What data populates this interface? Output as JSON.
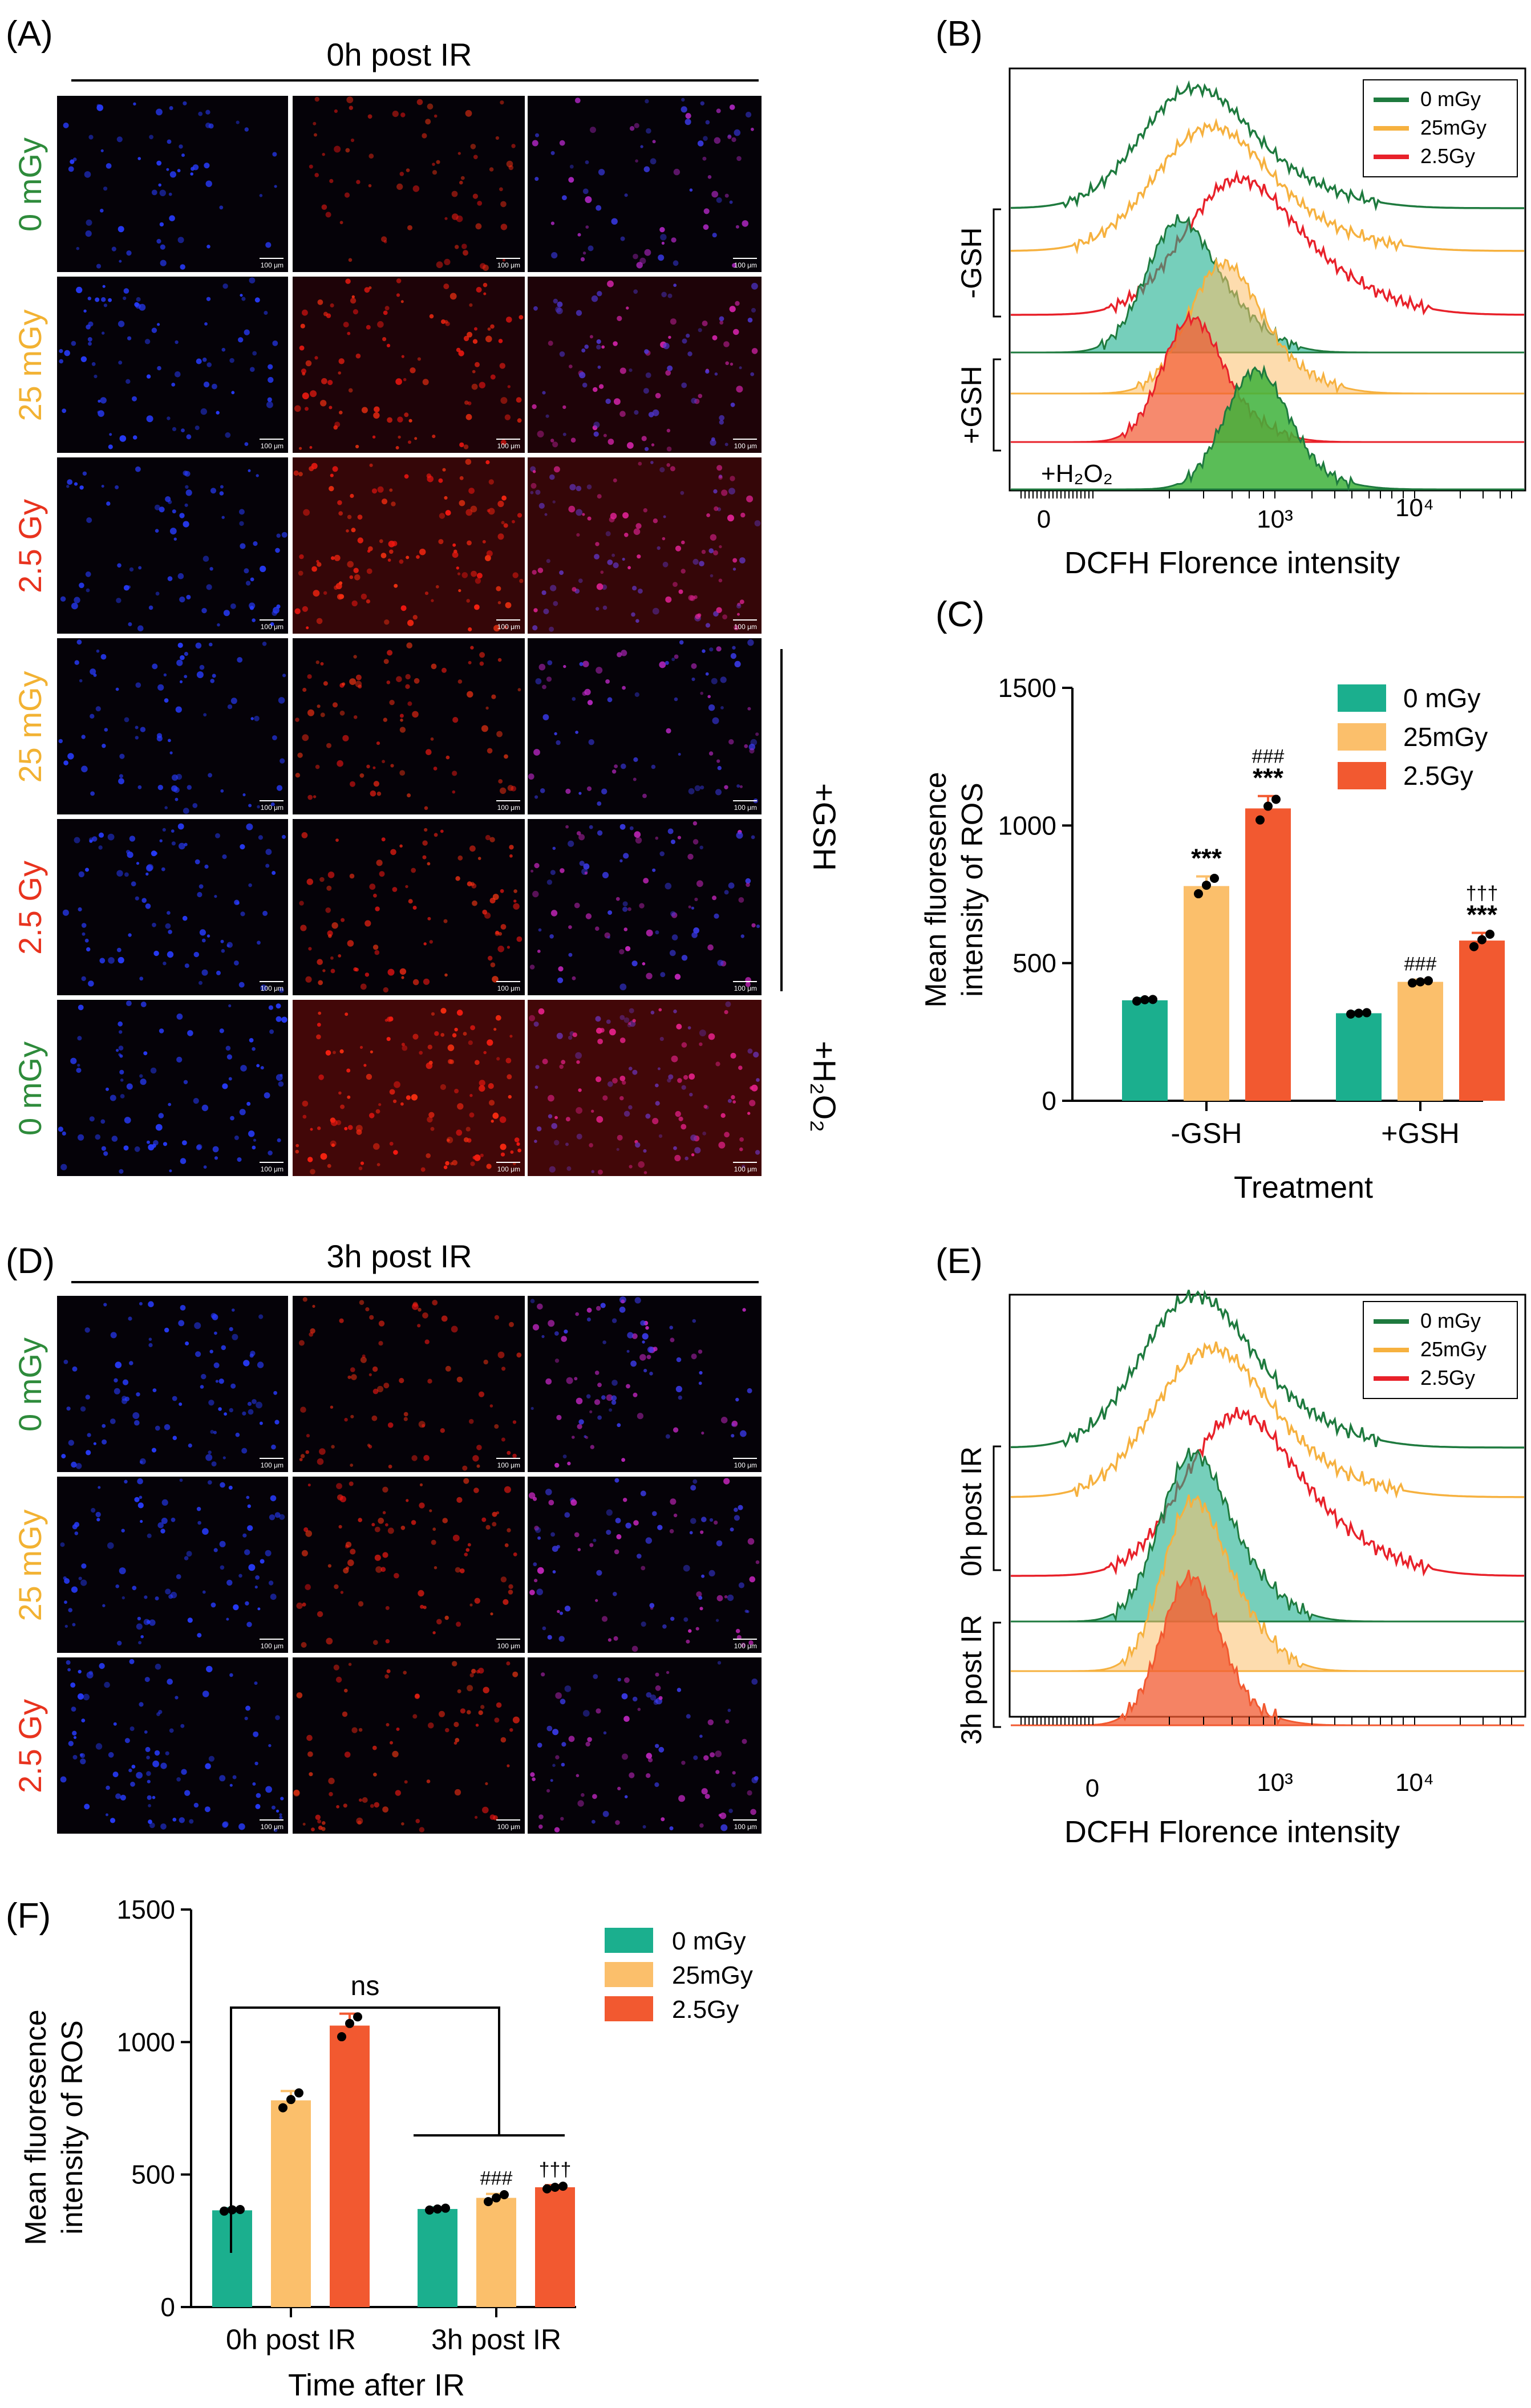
{
  "colors": {
    "control": "#1BAF8E",
    "low": "#FBBF6B",
    "high": "#F25930",
    "control_line": "#1E7A3E",
    "low_line": "#F6B13F",
    "high_line": "#E8212A",
    "green_label": "#2E8B3B",
    "orange_label": "#F2B233",
    "red_label": "#E8331E"
  },
  "panels": {
    "a": {
      "letter": "(A)",
      "header": "0h post IR",
      "scale_bar": "100 μm",
      "rows": [
        {
          "dose": "0 mGy",
          "tone": "green",
          "brightness": [
            0.1,
            0.2,
            0.3
          ]
        },
        {
          "dose": "25 mGy",
          "tone": "orange",
          "brightness": [
            0.4,
            0.7,
            0.7
          ]
        },
        {
          "dose": "2.5 Gy",
          "tone": "red",
          "brightness": [
            0.3,
            0.9,
            0.9
          ]
        },
        {
          "dose": "25 mGy",
          "tone": "orange",
          "brightness": [
            0.3,
            0.4,
            0.4
          ]
        },
        {
          "dose": "2.5 Gy",
          "tone": "red",
          "brightness": [
            0.5,
            0.5,
            0.6
          ]
        },
        {
          "dose": "0 mGy",
          "tone": "green",
          "brightness": [
            0.5,
            1.0,
            1.0
          ]
        }
      ],
      "bracket_gsh": "+GSH",
      "bracket_h2o2": "+H₂O₂"
    },
    "d": {
      "letter": "(D)",
      "header": "3h post IR",
      "scale_bar": "100 μm",
      "rows": [
        {
          "dose": "0 mGy",
          "tone": "green",
          "brightness": [
            0.5,
            0.3,
            0.5
          ]
        },
        {
          "dose": "25 mGy",
          "tone": "orange",
          "brightness": [
            0.5,
            0.4,
            0.6
          ]
        },
        {
          "dose": "2.5 Gy",
          "tone": "red",
          "brightness": [
            0.6,
            0.4,
            0.5
          ]
        }
      ]
    },
    "b": {
      "letter": "(B)",
      "legend": [
        "0 mGy",
        "25mGy",
        "2.5Gy"
      ],
      "group_minus": "-GSH",
      "group_plus": "+GSH",
      "h2o2": "+H₂O₂",
      "xlabel": "DCFH Florence intensity",
      "xticks": [
        "0",
        "10³",
        "10⁴"
      ]
    },
    "e": {
      "letter": "(E)",
      "legend": [
        "0 mGy",
        "25mGy",
        "2.5Gy"
      ],
      "group_top": "0h post IR",
      "group_bottom": "3h post IR",
      "xlabel": "DCFH Florence intensity",
      "xticks": [
        "0",
        "10³",
        "10⁴"
      ]
    },
    "c": {
      "letter": "(C)",
      "ylabel_1": "Mean fluoresence",
      "ylabel_2": "intensity of ROS",
      "xlabel": "Treatment",
      "legend": [
        "0 mGy",
        "25mGy",
        "2.5Gy"
      ]
    },
    "f": {
      "letter": "(F)",
      "ylabel_1": "Mean fluoresence",
      "ylabel_2": "intensity of ROS",
      "xlabel": "Time after IR",
      "legend": [
        "0 mGy",
        "25mGy",
        "2.5Gy"
      ],
      "ns": "ns"
    }
  },
  "chart_data": [
    {
      "type": "bar",
      "title": "",
      "xlabel": "Treatment",
      "ylabel": "Mean fluoresence intensity of ROS",
      "ylim": [
        0,
        1500
      ],
      "yticks": [
        0,
        500,
        1000,
        1500
      ],
      "categories": [
        "-GSH",
        "+GSH"
      ],
      "series": [
        {
          "name": "0 mGy",
          "values": [
            365,
            318
          ],
          "errors": [
            8,
            6
          ],
          "points": [
            [
              362,
              367,
              368
            ],
            [
              315,
              318,
              320
            ]
          ],
          "annotations": [
            "",
            ""
          ]
        },
        {
          "name": "25mGy",
          "values": [
            780,
            432
          ],
          "errors": [
            35,
            8
          ],
          "points": [
            [
              752,
              783,
              808
            ],
            [
              428,
              432,
              436
            ]
          ],
          "annotations": [
            "***",
            "###"
          ]
        },
        {
          "name": "2.5Gy",
          "values": [
            1062,
            582
          ],
          "errors": [
            45,
            28
          ],
          "points": [
            [
              1020,
              1070,
              1095
            ],
            [
              560,
              585,
              605
            ]
          ],
          "annotations": [
            "###\n***",
            "†††\n***"
          ]
        }
      ],
      "legend": "top-right",
      "grid": false
    },
    {
      "type": "bar",
      "title": "",
      "xlabel": "Time after IR",
      "ylabel": "Mean fluoresence intensity of ROS",
      "ylim": [
        0,
        1500
      ],
      "yticks": [
        0,
        500,
        1000,
        1500
      ],
      "categories": [
        "0h post IR",
        "3h post IR"
      ],
      "series": [
        {
          "name": "0 mGy",
          "values": [
            365,
            370
          ],
          "errors": [
            8,
            6
          ],
          "points": [
            [
              362,
              367,
              368
            ],
            [
              366,
              370,
              373
            ]
          ],
          "annotations": [
            "",
            ""
          ]
        },
        {
          "name": "25mGy",
          "values": [
            780,
            412
          ],
          "errors": [
            35,
            15
          ],
          "points": [
            [
              752,
              783,
              808
            ],
            [
              398,
              412,
              424
            ]
          ],
          "annotations": [
            "",
            "###"
          ]
        },
        {
          "name": "2.5Gy",
          "values": [
            1062,
            452
          ],
          "errors": [
            45,
            8
          ],
          "points": [
            [
              1020,
              1070,
              1095
            ],
            [
              446,
              452,
              456
            ]
          ],
          "annotations": [
            "",
            "†††"
          ]
        }
      ],
      "comparison": "ns",
      "legend": "top-right",
      "grid": false
    }
  ]
}
